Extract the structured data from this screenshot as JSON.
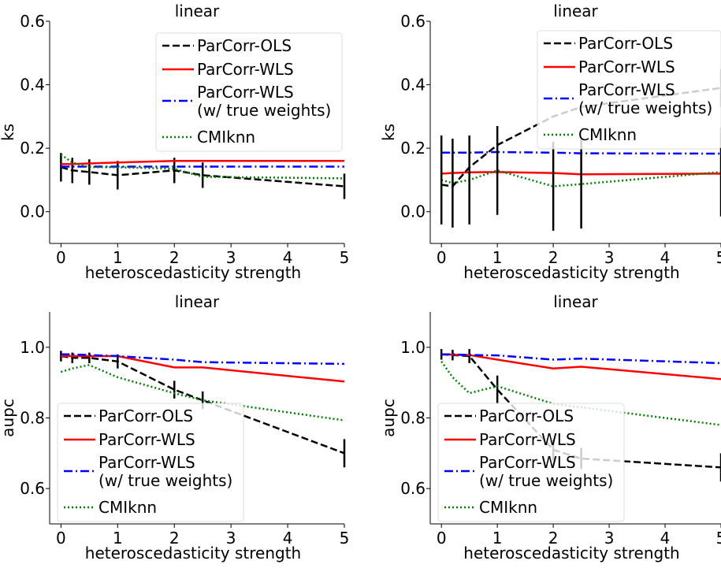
{
  "chart_data": [
    {
      "type": "line",
      "title": "linear",
      "xlabel": "heteroscedasticity strength",
      "ylabel": "ks",
      "xlim": [
        -0.2,
        5.0
      ],
      "ylim": [
        -0.1,
        0.6
      ],
      "xticks": [
        0,
        1,
        2,
        3,
        4,
        5
      ],
      "yticks": [
        0.0,
        0.2,
        0.4,
        0.6
      ],
      "ytick_labels": [
        "0.0",
        "0.2",
        "0.4",
        "0.6"
      ],
      "legend_position": "top-right",
      "x": [
        0,
        0.2,
        0.5,
        1,
        2,
        2.5,
        5
      ],
      "series": [
        {
          "name": "ParCorr-OLS",
          "color": "#000000",
          "dash": "dashed",
          "values": [
            0.14,
            0.13,
            0.125,
            0.115,
            0.13,
            0.115,
            0.08
          ],
          "errors": [
            0.045,
            0.04,
            0.04,
            0.045,
            0.04,
            0.04,
            0.04
          ]
        },
        {
          "name": "ParCorr-WLS",
          "color": "#ff0000",
          "dash": "solid",
          "values": [
            0.15,
            0.15,
            0.152,
            0.155,
            0.16,
            0.16,
            0.16
          ],
          "errors": [
            0,
            0,
            0,
            0,
            0,
            0,
            0
          ]
        },
        {
          "name": "ParCorr-WLS\n(w/ true weights)",
          "color": "#0000ff",
          "dash": "dashdot",
          "values": [
            0.142,
            0.142,
            0.142,
            0.142,
            0.142,
            0.142,
            0.142
          ],
          "errors": [
            0,
            0,
            0,
            0,
            0,
            0,
            0
          ]
        },
        {
          "name": "CMIknn",
          "color": "#008000",
          "dash": "dotted",
          "values": [
            0.18,
            0.155,
            0.14,
            0.14,
            0.135,
            0.11,
            0.105
          ],
          "errors": [
            0,
            0,
            0,
            0,
            0,
            0,
            0
          ]
        }
      ]
    },
    {
      "type": "line",
      "title": "linear",
      "xlabel": "heteroscedasticity strength",
      "ylabel": "ks",
      "xlim": [
        -0.2,
        5.0
      ],
      "ylim": [
        -0.1,
        0.6
      ],
      "xticks": [
        0,
        1,
        2,
        3,
        4,
        5
      ],
      "yticks": [
        0.0,
        0.2,
        0.4,
        0.6
      ],
      "ytick_labels": [
        "0.0",
        "0.2",
        "0.4",
        "0.6"
      ],
      "legend_position": "top-right",
      "x": [
        0,
        0.2,
        0.5,
        1,
        2,
        2.5,
        5
      ],
      "series": [
        {
          "name": "ParCorr-OLS",
          "color": "#000000",
          "dash": "dashed",
          "values": [
            0.085,
            0.08,
            0.14,
            0.21,
            0.3,
            0.33,
            0.39
          ],
          "errors": [
            0,
            0,
            0,
            0,
            0,
            0,
            0.06
          ]
        },
        {
          "name": "ParCorr-WLS",
          "color": "#ff0000",
          "dash": "solid",
          "values": [
            0.12,
            0.122,
            0.124,
            0.125,
            0.122,
            0.118,
            0.12
          ],
          "errors": [
            0,
            0,
            0,
            0,
            0,
            0,
            0
          ]
        },
        {
          "name": "ParCorr-WLS\n(w/ true weights)",
          "color": "#0000ff",
          "dash": "dashdot",
          "values": [
            0.186,
            0.186,
            0.186,
            0.188,
            0.186,
            0.184,
            0.183
          ],
          "errors": [
            0,
            0,
            0,
            0,
            0,
            0,
            0
          ]
        },
        {
          "name": "CMIknn",
          "color": "#008000",
          "dash": "dotted",
          "values": [
            0.1,
            0.09,
            0.1,
            0.13,
            0.08,
            0.087,
            0.125
          ],
          "errors": [
            0.14,
            0.14,
            0.14,
            0.14,
            0.14,
            0.14,
            0.14
          ]
        }
      ]
    },
    {
      "type": "line",
      "title": "linear",
      "xlabel": "heteroscedasticity strength",
      "ylabel": "aupc",
      "xlim": [
        -0.2,
        5.0
      ],
      "ylim": [
        0.5,
        1.1
      ],
      "xticks": [
        0,
        1,
        2,
        3,
        4,
        5
      ],
      "yticks": [
        0.6,
        0.8,
        1.0
      ],
      "ytick_labels": [
        "0.6",
        "0.8",
        "1.0"
      ],
      "legend_position": "lower-left",
      "x": [
        0,
        0.2,
        0.5,
        1,
        2,
        2.5,
        5
      ],
      "series": [
        {
          "name": "ParCorr-OLS",
          "color": "#000000",
          "dash": "dashed",
          "values": [
            0.975,
            0.97,
            0.97,
            0.96,
            0.88,
            0.85,
            0.7
          ],
          "errors": [
            0.015,
            0.015,
            0.015,
            0.02,
            0.025,
            0.025,
            0.04
          ]
        },
        {
          "name": "ParCorr-WLS",
          "color": "#ff0000",
          "dash": "solid",
          "values": [
            0.975,
            0.975,
            0.975,
            0.975,
            0.943,
            0.943,
            0.903
          ],
          "errors": [
            0,
            0,
            0,
            0,
            0,
            0,
            0
          ]
        },
        {
          "name": "ParCorr-WLS\n(w/ true weights)",
          "color": "#0000ff",
          "dash": "dashdot",
          "values": [
            0.98,
            0.98,
            0.978,
            0.975,
            0.965,
            0.958,
            0.953
          ],
          "errors": [
            0,
            0,
            0,
            0,
            0,
            0,
            0
          ]
        },
        {
          "name": "CMIknn",
          "color": "#008000",
          "dash": "dotted",
          "values": [
            0.93,
            0.94,
            0.95,
            0.915,
            0.87,
            0.85,
            0.793
          ],
          "errors": [
            0,
            0,
            0,
            0,
            0,
            0,
            0
          ]
        }
      ]
    },
    {
      "type": "line",
      "title": "linear",
      "xlabel": "heteroscedasticity strength",
      "ylabel": "aupc",
      "xlim": [
        -0.2,
        5.0
      ],
      "ylim": [
        0.5,
        1.1
      ],
      "xticks": [
        0,
        1,
        2,
        3,
        4,
        5
      ],
      "yticks": [
        0.6,
        0.8,
        1.0
      ],
      "ytick_labels": [
        "0.6",
        "0.8",
        "1.0"
      ],
      "legend_position": "lower-left",
      "x": [
        0,
        0.2,
        0.5,
        1,
        2,
        2.5,
        5
      ],
      "series": [
        {
          "name": "ParCorr-OLS",
          "color": "#000000",
          "dash": "dashed",
          "values": [
            0.98,
            0.978,
            0.975,
            0.88,
            0.71,
            0.685,
            0.66
          ],
          "errors": [
            0.015,
            0.015,
            0.02,
            0.04,
            0.03,
            0.03,
            0.04
          ]
        },
        {
          "name": "ParCorr-WLS",
          "color": "#ff0000",
          "dash": "solid",
          "values": [
            0.98,
            0.979,
            0.978,
            0.965,
            0.94,
            0.945,
            0.91
          ],
          "errors": [
            0,
            0,
            0,
            0,
            0,
            0,
            0
          ]
        },
        {
          "name": "ParCorr-WLS\n(w/ true weights)",
          "color": "#0000ff",
          "dash": "dashdot",
          "values": [
            0.98,
            0.98,
            0.978,
            0.977,
            0.965,
            0.968,
            0.955
          ],
          "errors": [
            0,
            0,
            0,
            0,
            0,
            0,
            0
          ]
        },
        {
          "name": "CMIknn",
          "color": "#008000",
          "dash": "dotted",
          "values": [
            0.96,
            0.915,
            0.87,
            0.89,
            0.84,
            0.83,
            0.78
          ],
          "errors": [
            0,
            0,
            0,
            0,
            0,
            0,
            0
          ]
        }
      ]
    }
  ]
}
